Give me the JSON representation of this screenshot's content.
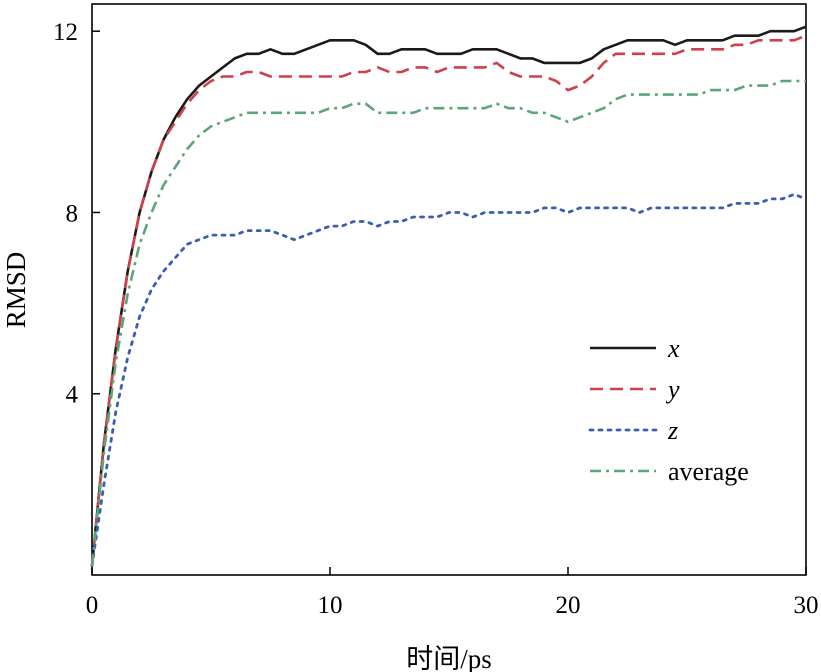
{
  "chart_data": {
    "type": "line",
    "xlabel": "时间/ps",
    "ylabel": "RMSD",
    "xlim": [
      0,
      30
    ],
    "ylim": [
      0,
      12.6
    ],
    "xticks": [
      0,
      10,
      20,
      30
    ],
    "xtick_labels": [
      "0",
      "10",
      "20",
      "30"
    ],
    "yticks": [
      4,
      8,
      12
    ],
    "ytick_labels": [
      "4",
      "8",
      "12"
    ],
    "grid": false,
    "legend_position": "right",
    "x": [
      0,
      0.5,
      1,
      1.5,
      2,
      2.5,
      3,
      3.5,
      4,
      4.5,
      5,
      5.5,
      6,
      6.5,
      7,
      7.5,
      8,
      8.5,
      9,
      9.5,
      10,
      10.5,
      11,
      11.5,
      12,
      12.5,
      13,
      13.5,
      14,
      14.5,
      15,
      15.5,
      16,
      16.5,
      17,
      17.5,
      18,
      18.5,
      19,
      19.5,
      20,
      20.5,
      21,
      21.5,
      22,
      22.5,
      23,
      23.5,
      24,
      24.5,
      25,
      25.5,
      26,
      26.5,
      27,
      27.5,
      28,
      28.5,
      29,
      29.5,
      30
    ],
    "series": [
      {
        "name": "x",
        "color": "#1a1a1a",
        "style": "solid",
        "values": [
          0.2,
          2.9,
          5.0,
          6.7,
          8.0,
          8.9,
          9.6,
          10.1,
          10.5,
          10.8,
          11.0,
          11.2,
          11.4,
          11.5,
          11.5,
          11.6,
          11.5,
          11.5,
          11.6,
          11.7,
          11.8,
          11.8,
          11.8,
          11.7,
          11.5,
          11.5,
          11.6,
          11.6,
          11.6,
          11.5,
          11.5,
          11.5,
          11.6,
          11.6,
          11.6,
          11.5,
          11.4,
          11.4,
          11.3,
          11.3,
          11.3,
          11.3,
          11.4,
          11.6,
          11.7,
          11.8,
          11.8,
          11.8,
          11.8,
          11.7,
          11.8,
          11.8,
          11.8,
          11.8,
          11.9,
          11.9,
          11.9,
          12.0,
          12.0,
          12.0,
          12.1
        ]
      },
      {
        "name": "y",
        "color": "#d0404a",
        "style": "dashed",
        "values": [
          0.2,
          2.9,
          5.0,
          6.7,
          8.0,
          8.9,
          9.6,
          10.0,
          10.4,
          10.7,
          10.9,
          11.0,
          11.0,
          11.1,
          11.1,
          11.0,
          11.0,
          11.0,
          11.0,
          11.0,
          11.0,
          11.0,
          11.1,
          11.1,
          11.2,
          11.1,
          11.1,
          11.2,
          11.2,
          11.1,
          11.2,
          11.2,
          11.2,
          11.2,
          11.3,
          11.1,
          11.0,
          11.0,
          11.0,
          10.9,
          10.7,
          10.8,
          11.0,
          11.3,
          11.5,
          11.5,
          11.5,
          11.5,
          11.5,
          11.5,
          11.6,
          11.6,
          11.6,
          11.6,
          11.7,
          11.7,
          11.8,
          11.8,
          11.8,
          11.8,
          11.9
        ]
      },
      {
        "name": "z",
        "color": "#3a5fb0",
        "style": "dotted",
        "values": [
          0.2,
          2.0,
          3.6,
          4.8,
          5.7,
          6.3,
          6.7,
          7.0,
          7.3,
          7.4,
          7.5,
          7.5,
          7.5,
          7.6,
          7.6,
          7.6,
          7.5,
          7.4,
          7.5,
          7.6,
          7.7,
          7.7,
          7.8,
          7.8,
          7.7,
          7.8,
          7.8,
          7.9,
          7.9,
          7.9,
          8.0,
          8.0,
          7.9,
          8.0,
          8.0,
          8.0,
          8.0,
          8.0,
          8.1,
          8.1,
          8.0,
          8.1,
          8.1,
          8.1,
          8.1,
          8.1,
          8.0,
          8.1,
          8.1,
          8.1,
          8.1,
          8.1,
          8.1,
          8.1,
          8.2,
          8.2,
          8.2,
          8.3,
          8.3,
          8.4,
          8.3
        ]
      },
      {
        "name": "average",
        "color": "#5aa67a",
        "style": "dashdot",
        "values": [
          0.2,
          2.7,
          4.7,
          6.2,
          7.3,
          8.0,
          8.6,
          9.0,
          9.4,
          9.7,
          9.9,
          10.0,
          10.1,
          10.2,
          10.2,
          10.2,
          10.2,
          10.2,
          10.2,
          10.2,
          10.3,
          10.3,
          10.4,
          10.4,
          10.2,
          10.2,
          10.2,
          10.2,
          10.3,
          10.3,
          10.3,
          10.3,
          10.3,
          10.3,
          10.4,
          10.3,
          10.3,
          10.2,
          10.2,
          10.1,
          10.0,
          10.1,
          10.2,
          10.3,
          10.5,
          10.6,
          10.6,
          10.6,
          10.6,
          10.6,
          10.6,
          10.6,
          10.7,
          10.7,
          10.7,
          10.8,
          10.8,
          10.8,
          10.9,
          10.9,
          10.9
        ]
      }
    ]
  }
}
